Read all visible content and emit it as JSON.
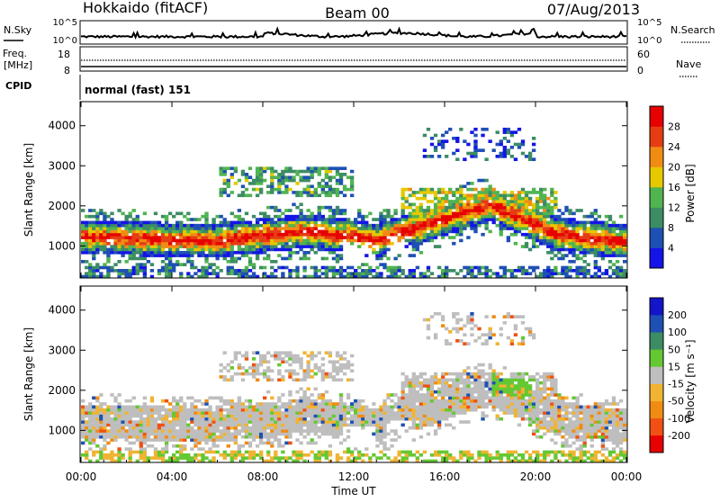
{
  "header": {
    "station": "Hokkaido (fitACF)",
    "beam": "Beam 00",
    "date": "07/Aug/2013"
  },
  "left_labels": {
    "nsky": "N.Sky",
    "freq_line1": "Freq.",
    "freq_line2": "[MHz]",
    "cpid": "CPID"
  },
  "right_labels": {
    "nsearch": "N.Search",
    "nave": "Nave"
  },
  "nsky_ticks": [
    "10^5",
    "10^0"
  ],
  "nsearch_ticks": [
    "10^5",
    "10^0"
  ],
  "freq_ticks": [
    "18",
    "8"
  ],
  "nave_ticks": [
    "60",
    "0"
  ],
  "cpid_text": "normal (fast) 151",
  "chart_data": [
    {
      "type": "heatmap",
      "name": "power",
      "ylabel": "Slant Range [km]",
      "yticks": [
        "1000",
        "2000",
        "3000",
        "4000"
      ],
      "ylim": [
        200,
        4600
      ],
      "colorbar_label": "Power [dB]",
      "colorbar_ticks": [
        "4",
        "8",
        "12",
        "16",
        "20",
        "24",
        "28"
      ],
      "colors": [
        "#1414e6",
        "#1e50b4",
        "#3c8c64",
        "#50b450",
        "#e6c800",
        "#f08c14",
        "#e63c14",
        "#e60000"
      ],
      "bands": [
        {
          "range_km": [
            800,
            1700
          ],
          "time_h": [
            0,
            24
          ],
          "level": "high"
        },
        {
          "range_km": [
            1700,
            2400
          ],
          "time_h": [
            14,
            21
          ],
          "level": "high"
        },
        {
          "range_km": [
            2200,
            3000
          ],
          "time_h": [
            6,
            12
          ],
          "level": "medium"
        }
      ]
    },
    {
      "type": "heatmap",
      "name": "velocity",
      "ylabel": "Slant Range [km]",
      "yticks": [
        "1000",
        "2000",
        "3000",
        "4000"
      ],
      "ylim": [
        200,
        4600
      ],
      "xlabel": "Time UT",
      "xticks": [
        "00:00",
        "04:00",
        "08:00",
        "12:00",
        "16:00",
        "20:00",
        "00:00"
      ],
      "colorbar_label": "Velocity [m s⁻¹]",
      "colorbar_ticks": [
        "-200",
        "-100",
        "-50",
        "-15",
        "15",
        "50",
        "100",
        "200"
      ],
      "colors": [
        "#e60000",
        "#f05014",
        "#f08c14",
        "#f0b432",
        "#bebebe",
        "#64c832",
        "#3c8c64",
        "#1e50b4",
        "#1414c8"
      ]
    }
  ]
}
